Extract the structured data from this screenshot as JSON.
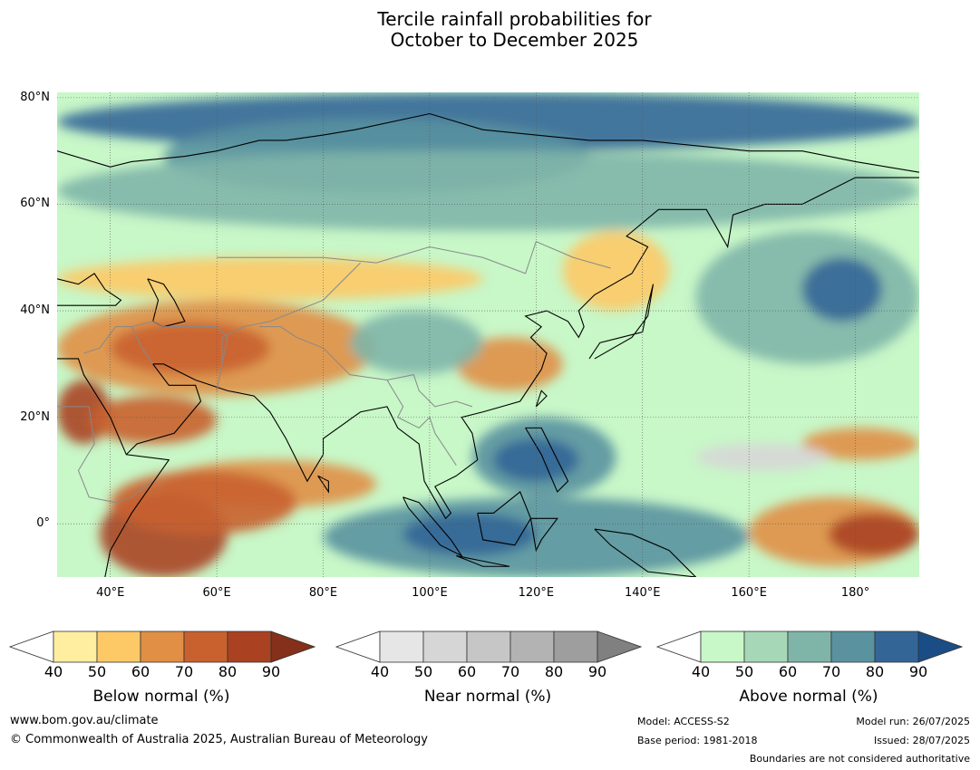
{
  "title": {
    "line1": "Tercile rainfall probabilities for",
    "line2": "October to December 2025"
  },
  "map": {
    "lon_range": [
      30,
      192
    ],
    "lat_range": [
      -10,
      81
    ],
    "lat_ticks": [
      {
        "value": 80,
        "label": "80°N"
      },
      {
        "value": 60,
        "label": "60°N"
      },
      {
        "value": 40,
        "label": "40°N"
      },
      {
        "value": 20,
        "label": "20°N"
      },
      {
        "value": 0,
        "label": "0°"
      }
    ],
    "lon_ticks": [
      {
        "value": 40,
        "label": "40°E"
      },
      {
        "value": 60,
        "label": "60°E"
      },
      {
        "value": 80,
        "label": "80°E"
      },
      {
        "value": 100,
        "label": "100°E"
      },
      {
        "value": 120,
        "label": "120°E"
      },
      {
        "value": 140,
        "label": "140°E"
      },
      {
        "value": 160,
        "label": "160°E"
      },
      {
        "value": 180,
        "label": "180°"
      }
    ],
    "grid": true,
    "colors": {
      "ocean_bg": "#c8f7c8",
      "coast": "#000000",
      "borders": "#888888"
    },
    "regions": [
      {
        "category": "above",
        "level": 4,
        "lon": [
          30,
          192
        ],
        "lat": [
          70,
          81
        ]
      },
      {
        "category": "above",
        "level": 3,
        "lon": [
          50,
          130
        ],
        "lat": [
          62,
          76
        ]
      },
      {
        "category": "above",
        "level": 2,
        "lon": [
          30,
          192
        ],
        "lat": [
          55,
          70
        ]
      },
      {
        "category": "below",
        "level": 1,
        "lon": [
          30,
          110
        ],
        "lat": [
          42,
          50
        ]
      },
      {
        "category": "below",
        "level": 2,
        "lon": [
          30,
          90
        ],
        "lat": [
          24,
          42
        ]
      },
      {
        "category": "below",
        "level": 3,
        "lon": [
          40,
          70
        ],
        "lat": [
          28,
          38
        ]
      },
      {
        "category": "below",
        "level": 4,
        "lon": [
          30,
          40
        ],
        "lat": [
          15,
          27
        ]
      },
      {
        "category": "below",
        "level": 3,
        "lon": [
          36,
          60
        ],
        "lat": [
          15,
          24
        ]
      },
      {
        "category": "below",
        "level": 2,
        "lon": [
          50,
          90
        ],
        "lat": [
          3,
          12
        ]
      },
      {
        "category": "below",
        "level": 4,
        "lon": [
          38,
          62
        ],
        "lat": [
          -10,
          6
        ]
      },
      {
        "category": "below",
        "level": 3,
        "lon": [
          40,
          75
        ],
        "lat": [
          -2,
          10
        ]
      },
      {
        "category": "below",
        "level": 2,
        "lon": [
          105,
          125
        ],
        "lat": [
          25,
          35
        ]
      },
      {
        "category": "below",
        "level": 1,
        "lon": [
          125,
          145
        ],
        "lat": [
          40,
          55
        ]
      },
      {
        "category": "above",
        "level": 2,
        "lon": [
          85,
          110
        ],
        "lat": [
          28,
          40
        ]
      },
      {
        "category": "above",
        "level": 3,
        "lon": [
          108,
          135
        ],
        "lat": [
          5,
          20
        ]
      },
      {
        "category": "above",
        "level": 4,
        "lon": [
          112,
          128
        ],
        "lat": [
          8,
          16
        ]
      },
      {
        "category": "above",
        "level": 3,
        "lon": [
          80,
          160
        ],
        "lat": [
          -10,
          5
        ]
      },
      {
        "category": "above",
        "level": 4,
        "lon": [
          95,
          120
        ],
        "lat": [
          -6,
          2
        ]
      },
      {
        "category": "above",
        "level": 2,
        "lon": [
          150,
          192
        ],
        "lat": [
          30,
          55
        ]
      },
      {
        "category": "above",
        "level": 4,
        "lon": [
          170,
          185
        ],
        "lat": [
          38,
          50
        ]
      },
      {
        "category": "below",
        "level": 2,
        "lon": [
          160,
          192
        ],
        "lat": [
          -8,
          5
        ]
      },
      {
        "category": "below",
        "level": 4,
        "lon": [
          175,
          192
        ],
        "lat": [
          -6,
          2
        ]
      },
      {
        "category": "below",
        "level": 2,
        "lon": [
          170,
          192
        ],
        "lat": [
          12,
          18
        ]
      },
      {
        "category": "near",
        "level": 1,
        "lon": [
          150,
          175
        ],
        "lat": [
          10,
          15
        ]
      }
    ]
  },
  "colorbars": [
    {
      "name": "below",
      "title": "Below normal (%)",
      "ticks": [
        "40",
        "50",
        "60",
        "70",
        "80",
        "90"
      ],
      "colors": [
        "#ffeea0",
        "#fdc966",
        "#e08f45",
        "#c9612f",
        "#aa4222",
        "#84301b"
      ]
    },
    {
      "name": "near",
      "title": "Near normal (%)",
      "ticks": [
        "40",
        "50",
        "60",
        "70",
        "80",
        "90"
      ],
      "colors": [
        "#e6e6e6",
        "#d6d6d6",
        "#c6c6c6",
        "#b3b3b3",
        "#9e9e9e",
        "#808080"
      ]
    },
    {
      "name": "above",
      "title": "Above normal (%)",
      "ticks": [
        "40",
        "50",
        "60",
        "70",
        "80",
        "90"
      ],
      "colors": [
        "#c8f7c8",
        "#a6d8b8",
        "#7fb5a8",
        "#5a92a0",
        "#336697",
        "#1a4d85"
      ]
    }
  ],
  "footer": {
    "website": "www.bom.gov.au/climate",
    "copyright": "© Commonwealth of Australia 2025, Australian Bureau of Meteorology",
    "model": "Model: ACCESS-S2",
    "base_period": "Base period: 1981-2018",
    "model_run": "Model run: 26/07/2025",
    "issued": "Issued: 28/07/2025",
    "boundaries": "Boundaries are not considered authoritative"
  }
}
